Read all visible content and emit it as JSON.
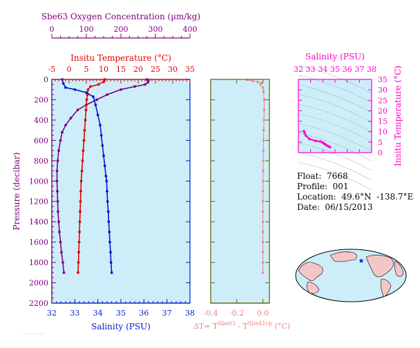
{
  "colors": {
    "panel_bg": "#cdeef8",
    "oxygen": "#800080",
    "temperature": "#e00000",
    "salinity": "#0018d0",
    "delta_t": "#f08080",
    "ts": "#ff00c8",
    "pressure_axis": "#800080",
    "delta_axis": "#606000"
  },
  "main_chart": {
    "oxygen_axis": {
      "title": "Sbe63 Oxygen Concentration (µm/kg)",
      "ticks": [
        0,
        100,
        200,
        300,
        400
      ],
      "range": [
        0,
        400
      ]
    },
    "temp_axis": {
      "title": "Insitu Temperature (°C)",
      "ticks": [
        -5,
        0,
        5,
        10,
        15,
        20,
        25,
        30,
        35
      ],
      "range": [
        -5,
        35
      ]
    },
    "sal_axis": {
      "title": "Salinity (PSU)",
      "ticks": [
        32,
        33,
        34,
        35,
        36,
        37,
        38
      ],
      "range": [
        32,
        38
      ]
    },
    "pres_axis": {
      "title": "Pressure (decibar)",
      "ticks": [
        0,
        200,
        400,
        600,
        800,
        1000,
        1200,
        1400,
        1600,
        1800,
        2000,
        2200
      ],
      "range": [
        0,
        2200
      ]
    }
  },
  "delta_chart": {
    "x_axis": {
      "title": "ΔT= TSbe63 - TSbe41cp (°C)",
      "title_main": "ΔT= T",
      "sup1": "Sbe63",
      "mid": " - T",
      "sup2": "Sbe41cp",
      "tail": " (°C)",
      "ticks": [
        "-0.4",
        "-0.2",
        "0.0"
      ],
      "range": [
        -0.4,
        0.05
      ]
    }
  },
  "ts_chart": {
    "sal_axis": {
      "title": "Salinity (PSU)",
      "ticks": [
        32,
        33,
        34,
        35,
        36,
        37,
        38
      ],
      "range": [
        32,
        38
      ]
    },
    "temp_axis": {
      "title": "Insitu Temperature (°C)",
      "ticks": [
        0,
        5,
        10,
        15,
        20,
        25,
        30,
        35
      ],
      "range": [
        0,
        35
      ]
    }
  },
  "info": {
    "float": "Float:  7668",
    "profile": "Profile:  001",
    "location": "Location:  49.6°N  -138.7°E",
    "date": "Date:  06/15/2013"
  },
  "chart_data": [
    {
      "type": "line",
      "title": "",
      "ylabel": "Pressure (decibar)",
      "ylim": [
        2200,
        0
      ],
      "series": [
        {
          "name": "Sbe63 Oxygen Concentration (µm/kg)",
          "xlim": [
            0,
            400
          ],
          "points": [
            [
              275,
              0
            ],
            [
              280,
              10
            ],
            [
              278,
              30
            ],
            [
              270,
              50
            ],
            [
              240,
              70
            ],
            [
              200,
              100
            ],
            [
              160,
              150
            ],
            [
              130,
              200
            ],
            [
              100,
              250
            ],
            [
              75,
              300
            ],
            [
              55,
              380
            ],
            [
              40,
              450
            ],
            [
              30,
              520
            ],
            [
              25,
              600
            ],
            [
              20,
              700
            ],
            [
              17,
              800
            ],
            [
              15,
              900
            ],
            [
              15,
              1000
            ],
            [
              16,
              1100
            ],
            [
              17,
              1200
            ],
            [
              18,
              1300
            ],
            [
              20,
              1400
            ],
            [
              22,
              1500
            ],
            [
              25,
              1600
            ],
            [
              28,
              1700
            ],
            [
              32,
              1800
            ],
            [
              35,
              1900
            ]
          ]
        },
        {
          "name": "Insitu Temperature (°C)",
          "xlim": [
            -5,
            35
          ],
          "points": [
            [
              10.3,
              0
            ],
            [
              10.1,
              20
            ],
            [
              8.5,
              50
            ],
            [
              6.2,
              70
            ],
            [
              5.5,
              100
            ],
            [
              5.3,
              150
            ],
            [
              5.1,
              200
            ],
            [
              4.9,
              300
            ],
            [
              4.7,
              400
            ],
            [
              4.5,
              500
            ],
            [
              4.3,
              600
            ],
            [
              4.1,
              700
            ],
            [
              3.9,
              800
            ],
            [
              3.7,
              900
            ],
            [
              3.5,
              1000
            ],
            [
              3.4,
              1100
            ],
            [
              3.3,
              1200
            ],
            [
              3.2,
              1300
            ],
            [
              3.1,
              1400
            ],
            [
              3.0,
              1500
            ],
            [
              2.9,
              1600
            ],
            [
              2.8,
              1700
            ],
            [
              2.7,
              1800
            ],
            [
              2.6,
              1900
            ]
          ]
        },
        {
          "name": "Salinity (PSU)",
          "xlim": [
            32,
            38
          ],
          "points": [
            [
              32.45,
              0
            ],
            [
              32.5,
              40
            ],
            [
              32.6,
              80
            ],
            [
              33.0,
              100
            ],
            [
              33.5,
              130
            ],
            [
              33.8,
              170
            ],
            [
              33.9,
              250
            ],
            [
              34.0,
              350
            ],
            [
              34.1,
              450
            ],
            [
              34.15,
              550
            ],
            [
              34.2,
              650
            ],
            [
              34.25,
              750
            ],
            [
              34.3,
              850
            ],
            [
              34.35,
              950
            ],
            [
              34.38,
              1000
            ],
            [
              34.4,
              1100
            ],
            [
              34.42,
              1200
            ],
            [
              34.45,
              1300
            ],
            [
              34.47,
              1400
            ],
            [
              34.5,
              1500
            ],
            [
              34.52,
              1600
            ],
            [
              34.55,
              1700
            ],
            [
              34.57,
              1800
            ],
            [
              34.6,
              1900
            ]
          ]
        }
      ]
    },
    {
      "type": "scatter",
      "ylabel": "Pressure (decibar)",
      "xlabel": "ΔT= TSbe63 - TSbe41cp (°C)",
      "xlim": [
        -0.4,
        0.05
      ],
      "ylim": [
        2200,
        0
      ],
      "series": [
        {
          "name": "ΔT",
          "points": [
            [
              -0.12,
              5
            ],
            [
              -0.08,
              15
            ],
            [
              -0.04,
              25
            ],
            [
              -0.01,
              35
            ],
            [
              -0.02,
              50
            ],
            [
              0.0,
              80
            ],
            [
              0.005,
              120
            ],
            [
              0.01,
              200
            ],
            [
              0.01,
              300
            ],
            [
              0.008,
              400
            ],
            [
              0.006,
              500
            ],
            [
              0.005,
              600
            ],
            [
              0.004,
              700
            ],
            [
              0.003,
              800
            ],
            [
              0.002,
              900
            ],
            [
              0.002,
              1000
            ],
            [
              0.001,
              1100
            ],
            [
              0.001,
              1200
            ],
            [
              0.0,
              1300
            ],
            [
              0.0,
              1400
            ],
            [
              0.0,
              1500
            ],
            [
              0.0,
              1600
            ],
            [
              0.0,
              1700
            ],
            [
              0.0,
              1800
            ],
            [
              0.0,
              1900
            ]
          ]
        }
      ]
    },
    {
      "type": "scatter",
      "xlabel": "Salinity (PSU)",
      "ylabel": "Insitu Temperature (°C)",
      "xlim": [
        32,
        38
      ],
      "ylim": [
        0,
        35
      ],
      "series": [
        {
          "name": "T-S",
          "points": [
            [
              32.45,
              10.3
            ],
            [
              32.5,
              9.5
            ],
            [
              32.6,
              8.2
            ],
            [
              32.9,
              6.5
            ],
            [
              33.4,
              5.6
            ],
            [
              33.8,
              5.3
            ],
            [
              34.0,
              4.8
            ],
            [
              34.1,
              4.3
            ],
            [
              34.2,
              3.9
            ],
            [
              34.3,
              3.5
            ],
            [
              34.4,
              3.2
            ],
            [
              34.5,
              2.9
            ],
            [
              34.6,
              2.6
            ]
          ]
        }
      ]
    }
  ]
}
